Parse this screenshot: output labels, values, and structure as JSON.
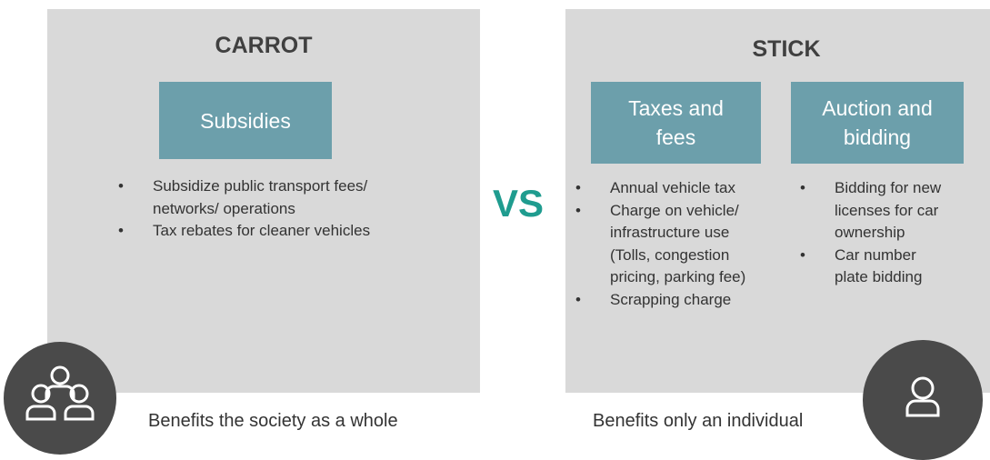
{
  "carrot": {
    "title": "CARROT",
    "boxes": [
      {
        "label": "Subsidies",
        "bullets": [
          "Subsidize public transport fees/ networks/ operations",
          "Tax rebates for cleaner vehicles"
        ]
      }
    ],
    "footer": "Benefits the society as a whole"
  },
  "vs": "VS",
  "stick": {
    "title": "STICK",
    "boxes": [
      {
        "label": "Taxes and fees",
        "bullets": [
          "Annual vehicle tax",
          "Charge on vehicle/ infrastructure use (Tolls, congestion pricing, parking fee)",
          "Scrapping charge"
        ]
      },
      {
        "label": "Auction and bidding",
        "bullets": [
          "Bidding for new licenses for car ownership",
          "Car number plate bidding"
        ]
      }
    ],
    "footer": "Benefits only an individual"
  }
}
